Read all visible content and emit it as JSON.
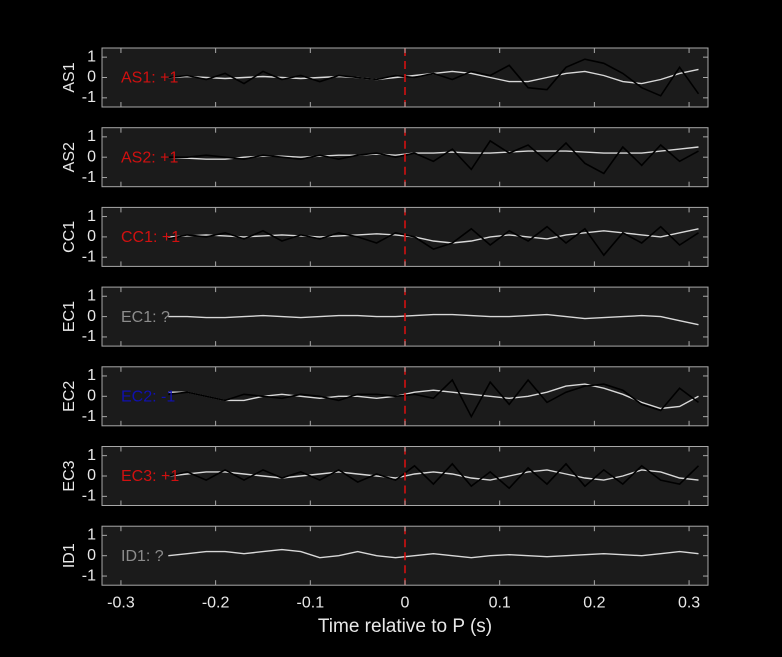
{
  "chart_data": [
    {
      "type": "line",
      "ylabel": "AS1",
      "annotation": {
        "text": "AS1: +1",
        "color": "#d01010"
      },
      "marker_x": 0,
      "marker_color": "#e01010",
      "xlim": [
        -0.32,
        0.32
      ],
      "ylim": [
        -1.45,
        1.45
      ],
      "xticks": [
        -0.3,
        -0.2,
        -0.1,
        0,
        0.1,
        0.2,
        0.3
      ],
      "yticks": [
        -1,
        0,
        1
      ],
      "x": [
        -0.25,
        -0.23,
        -0.21,
        -0.19,
        -0.17,
        -0.15,
        -0.13,
        -0.11,
        -0.09,
        -0.07,
        -0.05,
        -0.03,
        -0.01,
        0.01,
        0.03,
        0.05,
        0.07,
        0.09,
        0.11,
        0.13,
        0.15,
        0.17,
        0.19,
        0.21,
        0.23,
        0.25,
        0.27,
        0.29,
        0.31
      ],
      "series": [
        {
          "color": "#d8d8d8",
          "values": [
            0,
            0.05,
            0,
            -0.05,
            0,
            0.05,
            0,
            -0.05,
            0,
            0.05,
            0,
            -0.1,
            0,
            0.1,
            0.2,
            0.3,
            0.2,
            0,
            -0.2,
            -0.2,
            0,
            0.2,
            0.3,
            0.1,
            -0.2,
            -0.3,
            -0.1,
            0.2,
            0.4
          ]
        },
        {
          "color": "#000000",
          "values": [
            0,
            0.1,
            -0.1,
            0.2,
            -0.3,
            0.3,
            -0.1,
            0.1,
            -0.2,
            0.1,
            0,
            -0.1,
            0.1,
            0,
            0.2,
            -0.1,
            0.3,
            0.1,
            0.6,
            -0.5,
            -0.6,
            0.5,
            0.9,
            0.7,
            0.2,
            -0.5,
            -0.9,
            0.5,
            -0.8
          ]
        }
      ]
    },
    {
      "type": "line",
      "ylabel": "AS2",
      "annotation": {
        "text": "AS2: +1",
        "color": "#d01010"
      },
      "marker_x": 0,
      "marker_color": "#e01010",
      "xlim": [
        -0.32,
        0.32
      ],
      "ylim": [
        -1.45,
        1.45
      ],
      "xticks": [
        -0.3,
        -0.2,
        -0.1,
        0,
        0.1,
        0.2,
        0.3
      ],
      "yticks": [
        -1,
        0,
        1
      ],
      "x": [
        -0.25,
        -0.23,
        -0.21,
        -0.19,
        -0.17,
        -0.15,
        -0.13,
        -0.11,
        -0.09,
        -0.07,
        -0.05,
        -0.03,
        -0.01,
        0.01,
        0.03,
        0.05,
        0.07,
        0.09,
        0.11,
        0.13,
        0.15,
        0.17,
        0.19,
        0.21,
        0.23,
        0.25,
        0.27,
        0.29,
        0.31
      ],
      "series": [
        {
          "color": "#d8d8d8",
          "values": [
            0,
            -0.05,
            -0.1,
            -0.1,
            0,
            0.05,
            0.05,
            0,
            0.05,
            0.1,
            0.1,
            0.15,
            0.1,
            0.2,
            0.2,
            0.25,
            0.2,
            0.2,
            0.25,
            0.3,
            0.3,
            0.3,
            0.25,
            0.2,
            0.2,
            0.2,
            0.3,
            0.4,
            0.5
          ]
        },
        {
          "color": "#000000",
          "values": [
            0,
            0,
            0.1,
            0,
            -0.1,
            0.1,
            0,
            -0.1,
            0.1,
            -0.1,
            0.1,
            0.2,
            0,
            0.2,
            -0.2,
            0.4,
            -0.6,
            0.8,
            0.2,
            0.6,
            -0.2,
            0.7,
            -0.3,
            -0.8,
            0.5,
            -0.4,
            0.6,
            -0.2,
            0.3
          ]
        }
      ]
    },
    {
      "type": "line",
      "ylabel": "CC1",
      "annotation": {
        "text": "CC1: +1",
        "color": "#d01010"
      },
      "marker_x": 0,
      "marker_color": "#e01010",
      "xlim": [
        -0.32,
        0.32
      ],
      "ylim": [
        -1.45,
        1.45
      ],
      "xticks": [
        -0.3,
        -0.2,
        -0.1,
        0,
        0.1,
        0.2,
        0.3
      ],
      "yticks": [
        -1,
        0,
        1
      ],
      "x": [
        -0.25,
        -0.23,
        -0.21,
        -0.19,
        -0.17,
        -0.15,
        -0.13,
        -0.11,
        -0.09,
        -0.07,
        -0.05,
        -0.03,
        -0.01,
        0.01,
        0.03,
        0.05,
        0.07,
        0.09,
        0.11,
        0.13,
        0.15,
        0.17,
        0.19,
        0.21,
        0.23,
        0.25,
        0.27,
        0.29,
        0.31
      ],
      "series": [
        {
          "color": "#d8d8d8",
          "values": [
            0,
            0.05,
            0.1,
            0.05,
            0,
            0.05,
            0.1,
            0.05,
            0,
            0.05,
            0.1,
            0.15,
            0.1,
            0,
            -0.2,
            -0.3,
            -0.2,
            0,
            0.1,
            0,
            -0.1,
            0.1,
            0.2,
            0.3,
            0.2,
            0.1,
            0,
            0.2,
            0.4
          ]
        },
        {
          "color": "#000000",
          "values": [
            -0.1,
            0.1,
            0,
            0.2,
            -0.1,
            0.3,
            -0.2,
            0.1,
            -0.1,
            0.2,
            0,
            -0.3,
            0.2,
            0,
            -0.6,
            -0.3,
            0.4,
            -0.4,
            0.3,
            -0.2,
            0.5,
            -0.3,
            0.4,
            -0.9,
            0.2,
            -0.3,
            0.5,
            -0.4,
            0.2
          ]
        }
      ]
    },
    {
      "type": "line",
      "ylabel": "EC1",
      "annotation": {
        "text": "EC1: ?",
        "color": "#8c8c8c"
      },
      "marker_x": 0,
      "marker_color": "#e01010",
      "xlim": [
        -0.32,
        0.32
      ],
      "ylim": [
        -1.45,
        1.45
      ],
      "xticks": [
        -0.3,
        -0.2,
        -0.1,
        0,
        0.1,
        0.2,
        0.3
      ],
      "yticks": [
        -1,
        0,
        1
      ],
      "x": [
        -0.25,
        -0.23,
        -0.21,
        -0.19,
        -0.17,
        -0.15,
        -0.13,
        -0.11,
        -0.09,
        -0.07,
        -0.05,
        -0.03,
        -0.01,
        0.01,
        0.03,
        0.05,
        0.07,
        0.09,
        0.11,
        0.13,
        0.15,
        0.17,
        0.19,
        0.21,
        0.23,
        0.25,
        0.27,
        0.29,
        0.31
      ],
      "series": [
        {
          "color": "#d8d8d8",
          "values": [
            0,
            0,
            -0.05,
            -0.05,
            0,
            0.05,
            0,
            -0.05,
            0,
            0.05,
            0.05,
            0,
            0,
            0.05,
            0.1,
            0.1,
            0.05,
            0,
            0,
            0.05,
            0.1,
            0,
            -0.1,
            -0.05,
            0,
            0.05,
            0,
            -0.2,
            -0.4
          ]
        }
      ]
    },
    {
      "type": "line",
      "ylabel": "EC2",
      "annotation": {
        "text": "EC2: -1",
        "color": "#1010b0"
      },
      "marker_x": 0,
      "marker_color": "#e01010",
      "xlim": [
        -0.32,
        0.32
      ],
      "ylim": [
        -1.45,
        1.45
      ],
      "xticks": [
        -0.3,
        -0.2,
        -0.1,
        0,
        0.1,
        0.2,
        0.3
      ],
      "yticks": [
        -1,
        0,
        1
      ],
      "x": [
        -0.25,
        -0.23,
        -0.21,
        -0.19,
        -0.17,
        -0.15,
        -0.13,
        -0.11,
        -0.09,
        -0.07,
        -0.05,
        -0.03,
        -0.01,
        0.01,
        0.03,
        0.05,
        0.07,
        0.09,
        0.11,
        0.13,
        0.15,
        0.17,
        0.19,
        0.21,
        0.23,
        0.25,
        0.27,
        0.29,
        0.31
      ],
      "series": [
        {
          "color": "#d8d8d8",
          "values": [
            0.2,
            0.2,
            0,
            -0.2,
            -0.2,
            0,
            0.1,
            0,
            -0.1,
            0,
            0,
            -0.1,
            0,
            0.2,
            0.3,
            0.2,
            0.1,
            0,
            -0.1,
            0,
            0.2,
            0.5,
            0.6,
            0.4,
            0.1,
            -0.3,
            -0.6,
            -0.5,
            0
          ]
        },
        {
          "color": "#000000",
          "values": [
            0.1,
            0.2,
            0,
            -0.2,
            0.1,
            0,
            -0.1,
            0.1,
            0,
            -0.2,
            0.1,
            0.1,
            0,
            0.1,
            -0.1,
            0.8,
            -1,
            0.7,
            -0.4,
            0.8,
            -0.3,
            0.2,
            0.5,
            0.6,
            0.3,
            -0.4,
            -0.7,
            0.4,
            -0.3
          ]
        }
      ]
    },
    {
      "type": "line",
      "ylabel": "EC3",
      "annotation": {
        "text": "EC3: +1",
        "color": "#d01010"
      },
      "marker_x": 0,
      "marker_color": "#e01010",
      "xlim": [
        -0.32,
        0.32
      ],
      "ylim": [
        -1.45,
        1.45
      ],
      "xticks": [
        -0.3,
        -0.2,
        -0.1,
        0,
        0.1,
        0.2,
        0.3
      ],
      "yticks": [
        -1,
        0,
        1
      ],
      "x": [
        -0.25,
        -0.23,
        -0.21,
        -0.19,
        -0.17,
        -0.15,
        -0.13,
        -0.11,
        -0.09,
        -0.07,
        -0.05,
        -0.03,
        -0.01,
        0.01,
        0.03,
        0.05,
        0.07,
        0.09,
        0.11,
        0.13,
        0.15,
        0.17,
        0.19,
        0.21,
        0.23,
        0.25,
        0.27,
        0.29,
        0.31
      ],
      "series": [
        {
          "color": "#d8d8d8",
          "values": [
            0,
            0.1,
            0.2,
            0.2,
            0.1,
            0,
            -0.1,
            0,
            0.1,
            0.2,
            0.1,
            0,
            -0.1,
            0.1,
            0.2,
            0.1,
            -0.1,
            -0.2,
            0,
            0.2,
            0.3,
            0.1,
            -0.1,
            -0.2,
            0,
            0.3,
            0.2,
            -0.1,
            -0.2
          ]
        },
        {
          "color": "#000000",
          "values": [
            0,
            0.2,
            -0.2,
            0.3,
            -0.2,
            0.3,
            -0.1,
            0.2,
            -0.2,
            0.3,
            -0.3,
            0.1,
            -0.2,
            0.5,
            -0.4,
            0.6,
            -0.5,
            0.2,
            -0.6,
            0.4,
            -0.4,
            0.6,
            -0.5,
            0.3,
            -0.4,
            0.5,
            -0.2,
            -0.4,
            0.5
          ]
        }
      ]
    },
    {
      "type": "line",
      "ylabel": "ID1",
      "annotation": {
        "text": "ID1: ?",
        "color": "#8c8c8c"
      },
      "marker_x": 0,
      "marker_color": "#e01010",
      "xlabel": "Time relative to P (s)",
      "xlim": [
        -0.32,
        0.32
      ],
      "ylim": [
        -1.45,
        1.45
      ],
      "xticks": [
        -0.3,
        -0.2,
        -0.1,
        0,
        0.1,
        0.2,
        0.3
      ],
      "yticks": [
        -1,
        0,
        1
      ],
      "x": [
        -0.25,
        -0.23,
        -0.21,
        -0.19,
        -0.17,
        -0.15,
        -0.13,
        -0.11,
        -0.09,
        -0.07,
        -0.05,
        -0.03,
        -0.01,
        0.01,
        0.03,
        0.05,
        0.07,
        0.09,
        0.11,
        0.13,
        0.15,
        0.17,
        0.19,
        0.21,
        0.23,
        0.25,
        0.27,
        0.29,
        0.31
      ],
      "series": [
        {
          "color": "#d8d8d8",
          "values": [
            0,
            0.1,
            0.2,
            0.2,
            0.1,
            0.2,
            0.3,
            0.2,
            -0.1,
            0,
            0.2,
            0,
            -0.1,
            0,
            0.1,
            0,
            -0.1,
            0,
            0.05,
            0,
            -0.05,
            0,
            0.05,
            0.1,
            0.05,
            0,
            0.1,
            0.2,
            0.1
          ]
        }
      ]
    }
  ]
}
